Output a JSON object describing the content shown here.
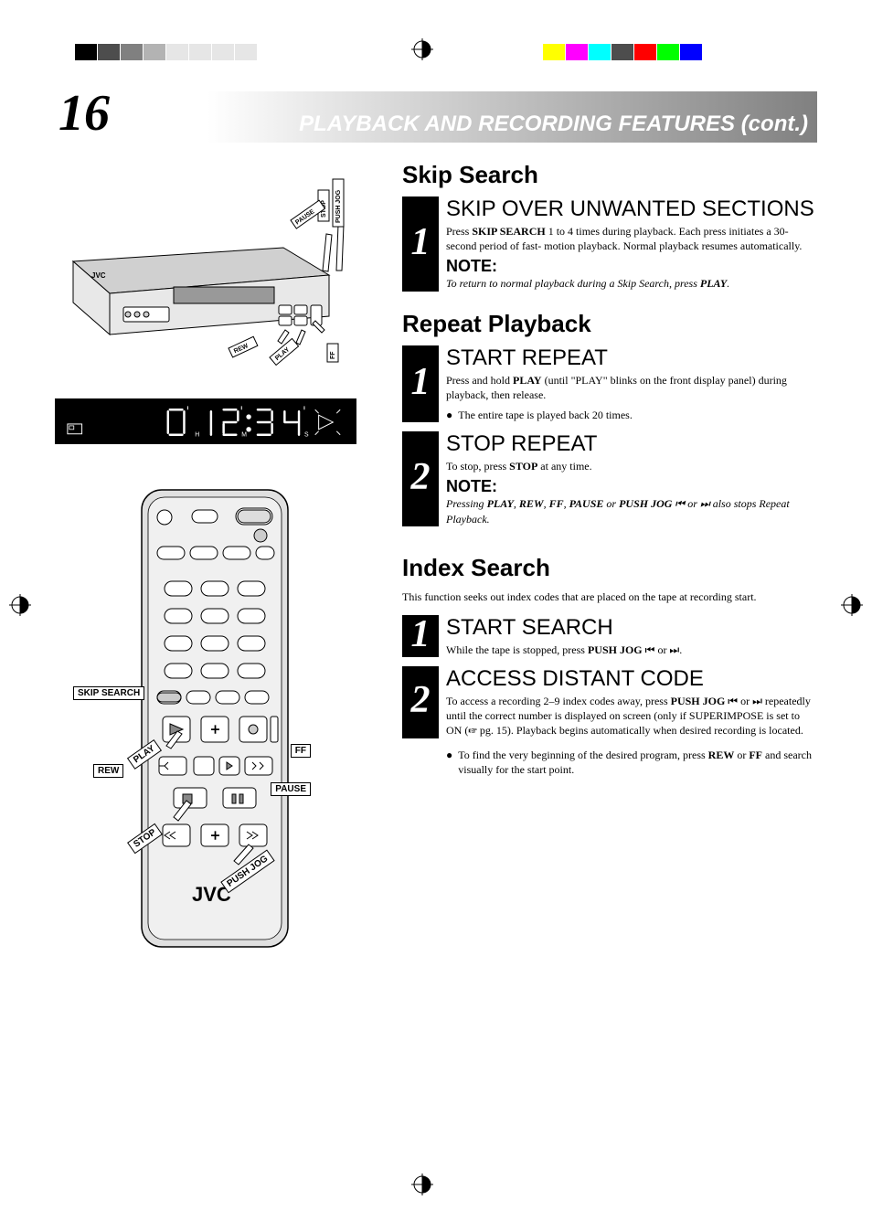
{
  "pageNumber": "16",
  "headerTitle": "PLAYBACK AND RECORDING FEATURES (cont.)",
  "colorBarLeft": [
    "#000000",
    "#4d4d4d",
    "#808080",
    "#b3b3b3",
    "#e6e6e6",
    "#e6e6e6",
    "#e6e6e6",
    "#e6e6e6"
  ],
  "colorBarRight": [
    "#ffff00",
    "#ff00ff",
    "#00ffff",
    "#4d4d4d",
    "#ff0000",
    "#00ff00",
    "#0000ff",
    "#ffffff"
  ],
  "displayText": "0  1 2: 3 4",
  "displayMarkers": [
    "H",
    "M",
    "S"
  ],
  "vcrLabels": {
    "pushJog": "PUSH JOG",
    "stop": "STOP",
    "pause": "PAUSE",
    "rew": "REW",
    "play": "PLAY",
    "ff": "FF",
    "brand": "JVC"
  },
  "remoteLabels": {
    "skipSearch": "SKIP SEARCH",
    "play": "PLAY",
    "ff": "FF",
    "rew": "REW",
    "pause": "PAUSE",
    "stop": "STOP",
    "pushJog": "PUSH JOG",
    "brand": "JVC"
  },
  "sections": {
    "skipSearch": {
      "title": "Skip Search",
      "step1Heading": "SKIP OVER UNWANTED SECTIONS",
      "step1Body": "Press <b>SKIP SEARCH</b> 1 to 4 times during playback. Each press initiates a 30-second period of fast- motion playback. Normal playback resumes automatically.",
      "noteLabel": "NOTE:",
      "noteBody": "To return to normal playback during a Skip Search, press <b>PLAY</b>."
    },
    "repeatPlayback": {
      "title": "Repeat Playback",
      "step1Heading": "START REPEAT",
      "step1Body": "Press and hold <b>PLAY</b> (until \"PLAY\" blinks on the front display panel) during playback, then release.",
      "step1Bullet": "The entire tape is played back 20 times.",
      "step2Heading": "STOP REPEAT",
      "step2Body": "To stop, press <b>STOP</b> at any time.",
      "noteLabel": "NOTE:",
      "noteBody": "Pressing <b>PLAY</b>, <b>REW</b>, <b>FF</b>, <b>PAUSE</b> or <b>PUSH JOG</b> ⏮ or ⏭ also stops Repeat Playback."
    },
    "indexSearch": {
      "title": "Index Search",
      "intro": "This function seeks out index codes that are placed on the tape at recording start.",
      "step1Heading": "START SEARCH",
      "step1Body": "While the tape is stopped, press <b>PUSH JOG</b> ⏮ or ⏭.",
      "step2Heading": "ACCESS DISTANT CODE",
      "step2Body": "To access a recording 2–9 index codes away, press <b>PUSH JOG</b> ⏮ or ⏭ repeatedly until the correct number is displayed on screen (only if SUPERIMPOSE is set to ON (☞ pg. 15). Playback begins automatically when desired recording is located.",
      "bullet": "To find the very beginning of the desired program, press <b>REW</b> or <b>FF</b> and search visually for the start point."
    }
  }
}
